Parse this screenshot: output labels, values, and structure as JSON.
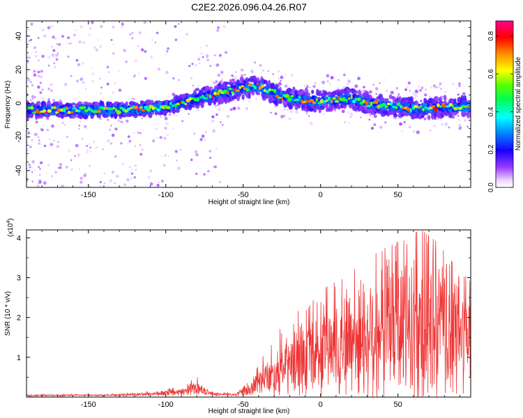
{
  "title": "C2E2.2026.096.04.26.R07",
  "chart_data": [
    {
      "type": "heatmap",
      "name": "spectrogram",
      "xlabel": "Height of straight line (km)",
      "ylabel": "Frequency (Hz)",
      "xlim": [
        -190,
        97
      ],
      "ylim": [
        -50,
        49
      ],
      "xticks": [
        -150,
        -100,
        -50,
        0,
        50
      ],
      "xtick_labels": [
        "-150",
        "-100",
        "-50",
        "0",
        "50"
      ],
      "yticks": [
        -40,
        -20,
        0,
        20,
        40
      ],
      "ytick_labels": [
        "-40",
        "-20",
        "0",
        "20",
        "40"
      ],
      "ridge": {
        "x": [
          -190,
          -170,
          -150,
          -130,
          -110,
          -100,
          -90,
          -80,
          -70,
          -60,
          -50,
          -40,
          -35,
          -30,
          -25,
          -20,
          -10,
          0,
          10,
          20,
          30,
          40,
          50,
          60,
          70,
          80,
          97
        ],
        "freq": [
          -4,
          -4,
          -4,
          -4,
          -3,
          -2,
          0,
          3,
          5,
          7,
          9,
          10,
          8,
          6,
          4,
          3,
          2,
          1,
          2,
          3,
          0,
          -1,
          -2,
          -3,
          -3,
          -2,
          -2
        ]
      },
      "colorbar": {
        "label": "Normalized spectral amplitude",
        "range": [
          0,
          0.88
        ],
        "ticks": [
          0.0,
          0.2,
          0.4,
          0.6,
          0.8
        ],
        "tick_labels": [
          "0.0",
          "0.2",
          "0.4",
          "0.6",
          "0.8"
        ]
      }
    },
    {
      "type": "line",
      "name": "snr",
      "xlabel": "Height of straight line (km)",
      "ylabel": "SNR (10 * v/v)",
      "y_multiplier_label": "(x10",
      "y_multiplier_exp": "4",
      "y_multiplier_close": ")",
      "xlim": [
        -190,
        97
      ],
      "ylim": [
        0,
        4.2
      ],
      "xticks": [
        -150,
        -100,
        -50,
        0,
        50
      ],
      "xtick_labels": [
        "-150",
        "-100",
        "-50",
        "0",
        "50"
      ],
      "yticks": [
        1,
        2,
        3,
        4
      ],
      "ytick_labels": [
        "1",
        "2",
        "3",
        "4"
      ],
      "color": "#ee3333",
      "envelope": {
        "x": [
          -190,
          -130,
          -110,
          -90,
          -80,
          -75,
          -70,
          -55,
          -45,
          -35,
          -25,
          -15,
          -5,
          5,
          15,
          25,
          35,
          45,
          55,
          65,
          75,
          85,
          97
        ],
        "mean": [
          0.04,
          0.05,
          0.08,
          0.12,
          0.25,
          0.15,
          0.08,
          0.06,
          0.2,
          0.5,
          0.7,
          0.9,
          1.0,
          1.2,
          1.4,
          1.5,
          1.6,
          1.7,
          1.8,
          1.8,
          1.7,
          1.6,
          1.6
        ],
        "spread": [
          0.03,
          0.03,
          0.06,
          0.1,
          0.2,
          0.1,
          0.05,
          0.04,
          0.2,
          0.5,
          0.8,
          1.0,
          1.1,
          1.3,
          1.6,
          1.8,
          2.0,
          2.2,
          2.4,
          2.6,
          2.3,
          2.0,
          1.6
        ],
        "max": [
          0.1,
          0.1,
          0.2,
          0.3,
          0.6,
          0.4,
          0.2,
          0.15,
          0.5,
          1.5,
          2.0,
          2.3,
          2.5,
          2.8,
          3.0,
          3.3,
          3.6,
          3.8,
          4.0,
          4.2,
          3.9,
          3.4,
          2.9
        ]
      }
    }
  ]
}
